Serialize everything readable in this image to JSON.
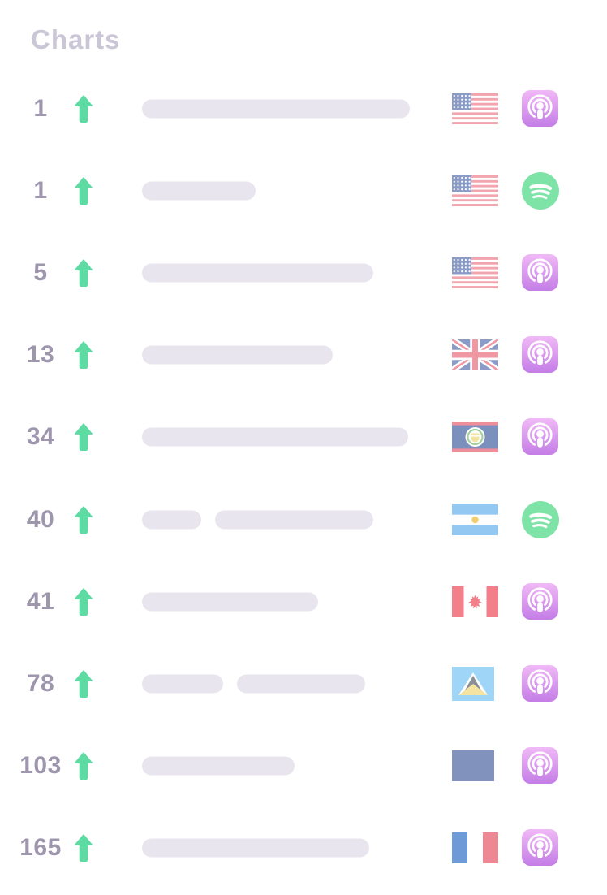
{
  "page": {
    "title": "Charts"
  },
  "colors": {
    "background": "#ffffff",
    "title": "#cbc6d6",
    "rank": "#9e96ad",
    "trend_up": "#5edba2",
    "bar": "#e9e5ee",
    "spotify_green": "#7ee3a6",
    "apple_gradient_top": "#f0b9f6",
    "apple_gradient_bottom": "#c47de6"
  },
  "chart": {
    "rows": [
      {
        "rank": "1",
        "trend": "up",
        "bars": [
          330
        ],
        "country": "united-states",
        "platform": "apple-podcasts"
      },
      {
        "rank": "1",
        "trend": "up",
        "bars": [
          140
        ],
        "country": "united-states",
        "platform": "spotify"
      },
      {
        "rank": "5",
        "trend": "up",
        "bars": [
          285
        ],
        "country": "united-states",
        "platform": "apple-podcasts"
      },
      {
        "rank": "13",
        "trend": "up",
        "bars": [
          235
        ],
        "country": "united-kingdom",
        "platform": "apple-podcasts"
      },
      {
        "rank": "34",
        "trend": "up",
        "bars": [
          328
        ],
        "country": "belize",
        "platform": "apple-podcasts"
      },
      {
        "rank": "40",
        "trend": "up",
        "bars": [
          73,
          195
        ],
        "country": "argentina",
        "platform": "spotify"
      },
      {
        "rank": "41",
        "trend": "up",
        "bars": [
          217
        ],
        "country": "canada",
        "platform": "apple-podcasts"
      },
      {
        "rank": "78",
        "trend": "up",
        "bars": [
          100,
          158
        ],
        "country": "saint-lucia",
        "platform": "apple-podcasts"
      },
      {
        "rank": "103",
        "trend": "up",
        "bars": [
          188
        ],
        "country": "unknown",
        "platform": "apple-podcasts"
      },
      {
        "rank": "165",
        "trend": "up",
        "bars": [
          280
        ],
        "country": "france",
        "platform": "apple-podcasts"
      }
    ]
  }
}
